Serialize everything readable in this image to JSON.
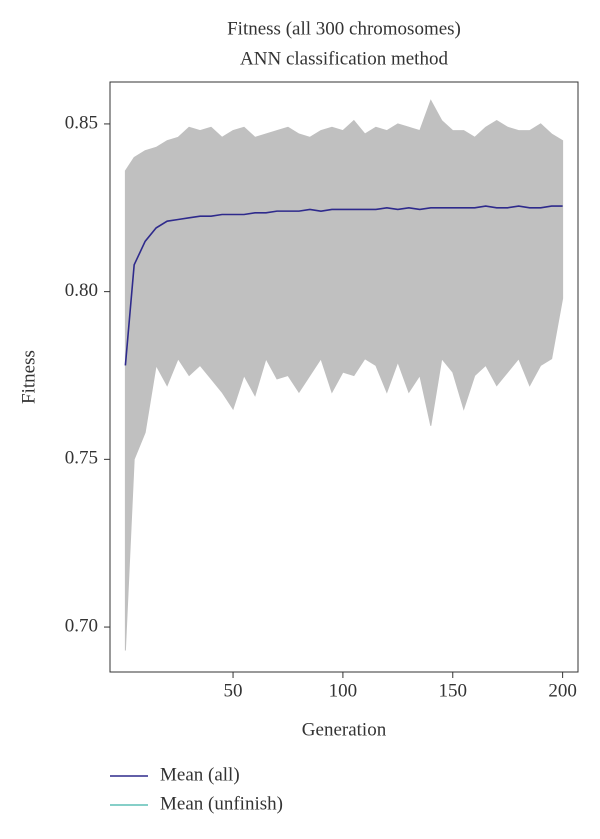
{
  "chart_data": {
    "type": "line",
    "title": "Fitness (all 300 chromosomes)",
    "subtitle": "ANN classification method",
    "x_label": "Generation",
    "y_label": "Fitness",
    "x": [
      1,
      5,
      10,
      15,
      20,
      25,
      30,
      35,
      40,
      45,
      50,
      55,
      60,
      65,
      70,
      75,
      80,
      85,
      90,
      95,
      100,
      105,
      110,
      115,
      120,
      125,
      130,
      135,
      140,
      145,
      150,
      155,
      160,
      165,
      170,
      175,
      180,
      185,
      190,
      195,
      200
    ],
    "band": {
      "color": "#c0c0c0",
      "upper": [
        0.836,
        0.84,
        0.842,
        0.843,
        0.845,
        0.846,
        0.849,
        0.848,
        0.849,
        0.846,
        0.848,
        0.849,
        0.846,
        0.847,
        0.848,
        0.849,
        0.847,
        0.846,
        0.848,
        0.849,
        0.848,
        0.851,
        0.847,
        0.849,
        0.848,
        0.85,
        0.849,
        0.848,
        0.857,
        0.851,
        0.848,
        0.848,
        0.846,
        0.849,
        0.851,
        0.849,
        0.848,
        0.848,
        0.85,
        0.847,
        0.845
      ],
      "lower": [
        0.693,
        0.75,
        0.758,
        0.778,
        0.772,
        0.78,
        0.775,
        0.778,
        0.774,
        0.77,
        0.765,
        0.775,
        0.769,
        0.78,
        0.774,
        0.775,
        0.77,
        0.775,
        0.78,
        0.77,
        0.776,
        0.775,
        0.78,
        0.778,
        0.77,
        0.779,
        0.77,
        0.775,
        0.76,
        0.78,
        0.776,
        0.765,
        0.775,
        0.778,
        0.772,
        0.776,
        0.78,
        0.772,
        0.778,
        0.78,
        0.798
      ]
    },
    "series": [
      {
        "name": "Mean (all)",
        "color": "#2e2a8c",
        "values": [
          0.778,
          0.808,
          0.815,
          0.819,
          0.821,
          0.8215,
          0.822,
          0.8225,
          0.8225,
          0.823,
          0.823,
          0.823,
          0.8235,
          0.8235,
          0.824,
          0.824,
          0.824,
          0.8245,
          0.824,
          0.8245,
          0.8245,
          0.8245,
          0.8245,
          0.8245,
          0.825,
          0.8245,
          0.825,
          0.8245,
          0.825,
          0.825,
          0.825,
          0.825,
          0.825,
          0.8255,
          0.825,
          0.825,
          0.8255,
          0.825,
          0.825,
          0.8255,
          0.8255
        ]
      },
      {
        "name": "Mean (unfinish)",
        "color": "#5fbfb5",
        "values": [
          null,
          null,
          null,
          null,
          null,
          null,
          null,
          null,
          null,
          null,
          null,
          null,
          null,
          null,
          null,
          null,
          null,
          null,
          null,
          null,
          null,
          null,
          null,
          null,
          null,
          null,
          null,
          null,
          null,
          null,
          null,
          null,
          null,
          null,
          null,
          null,
          null,
          null,
          null,
          null,
          null
        ]
      }
    ],
    "xlim": [
      -6,
      207
    ],
    "ylim": [
      0.6866,
      0.8625
    ],
    "xticks": [
      50,
      100,
      150,
      200
    ],
    "yticks": [
      {
        "value": 0.7,
        "label": "0.70"
      },
      0.75,
      {
        "value": 0.8,
        "label": "0.80"
      },
      0.85
    ]
  }
}
